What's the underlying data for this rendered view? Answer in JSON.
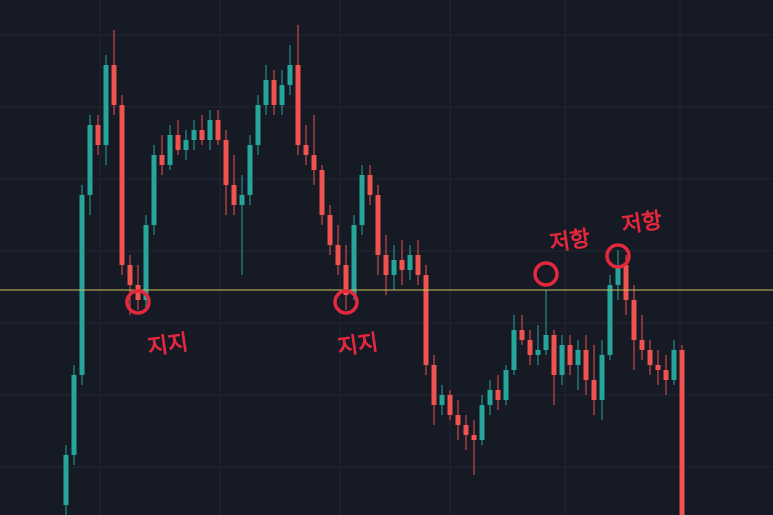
{
  "chart_data": {
    "type": "candlestick",
    "ylim": [
      0,
      515
    ],
    "up_color": "#26a69a",
    "down_color": "#ef5350",
    "level": 225,
    "level_color": "#c9c35a",
    "annotation_color": "#e5283d",
    "open": [
      10,
      60,
      140,
      320,
      390,
      370,
      450,
      410,
      250,
      230,
      215,
      290,
      360,
      350,
      380,
      365,
      375,
      385,
      375,
      395,
      375,
      330,
      310,
      320,
      370,
      410,
      435,
      410,
      430,
      450,
      370,
      360,
      345,
      300,
      270,
      250,
      220,
      290,
      340,
      320,
      260,
      240,
      255,
      245,
      260,
      240,
      150,
      110,
      120,
      100,
      90,
      80,
      75,
      110,
      125,
      115,
      145,
      185,
      175,
      160,
      165,
      180,
      140,
      170,
      150,
      165,
      135,
      115,
      160,
      230,
      250,
      215,
      175,
      165,
      150,
      145,
      135,
      165
    ],
    "high": [
      70,
      150,
      330,
      400,
      400,
      460,
      485,
      420,
      260,
      250,
      300,
      370,
      380,
      390,
      395,
      385,
      395,
      400,
      405,
      405,
      385,
      360,
      340,
      380,
      420,
      450,
      445,
      445,
      470,
      490,
      390,
      400,
      350,
      310,
      290,
      270,
      300,
      350,
      350,
      330,
      280,
      270,
      275,
      270,
      275,
      250,
      160,
      130,
      125,
      115,
      100,
      95,
      120,
      135,
      140,
      150,
      200,
      200,
      185,
      190,
      225,
      185,
      180,
      180,
      175,
      180,
      170,
      175,
      240,
      265,
      260,
      230,
      200,
      175,
      165,
      160,
      175,
      170
    ],
    "low": [
      0,
      50,
      130,
      300,
      360,
      350,
      400,
      240,
      200,
      205,
      205,
      280,
      340,
      345,
      360,
      355,
      365,
      370,
      365,
      370,
      300,
      300,
      240,
      310,
      360,
      400,
      400,
      400,
      420,
      360,
      350,
      330,
      290,
      260,
      240,
      205,
      215,
      280,
      310,
      240,
      220,
      225,
      230,
      235,
      230,
      140,
      90,
      100,
      95,
      75,
      65,
      40,
      70,
      100,
      105,
      110,
      140,
      170,
      150,
      150,
      160,
      110,
      130,
      140,
      125,
      120,
      100,
      95,
      155,
      215,
      200,
      145,
      155,
      140,
      130,
      120,
      130,
      0
    ],
    "close": [
      60,
      140,
      320,
      390,
      370,
      450,
      410,
      250,
      230,
      215,
      290,
      360,
      350,
      380,
      365,
      375,
      385,
      375,
      395,
      375,
      330,
      310,
      320,
      370,
      410,
      435,
      410,
      430,
      450,
      370,
      360,
      345,
      300,
      270,
      250,
      220,
      290,
      340,
      320,
      260,
      240,
      255,
      245,
      260,
      240,
      150,
      110,
      120,
      100,
      90,
      80,
      75,
      110,
      125,
      115,
      145,
      185,
      175,
      160,
      165,
      180,
      140,
      170,
      150,
      165,
      135,
      115,
      160,
      230,
      250,
      215,
      175,
      165,
      150,
      145,
      135,
      165,
      0
    ],
    "support": [
      {
        "text": "지지",
        "index": 9
      },
      {
        "text": "지지",
        "index": 35
      }
    ],
    "resistance": [
      {
        "text": "저항",
        "index": 60
      },
      {
        "text": "저항",
        "index": 69
      }
    ]
  }
}
